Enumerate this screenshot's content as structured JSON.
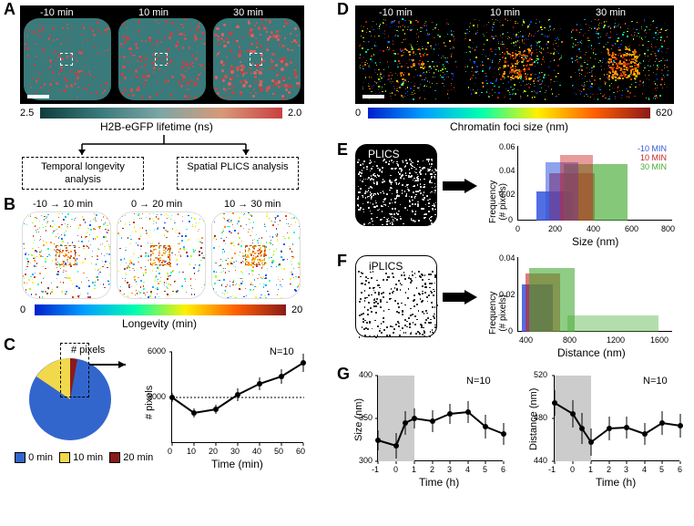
{
  "labels": {
    "A": "A",
    "B": "B",
    "C": "C",
    "D": "D",
    "E": "E",
    "F": "F",
    "G": "G"
  },
  "panelA": {
    "times": [
      "-10 min",
      "10 min",
      "30 min"
    ],
    "colorbar_label": "H2B-eGFP lifetime (ns)",
    "colorbar_min": "2.5",
    "colorbar_max": "2.0",
    "bg_color": "#000000",
    "cell_color": "#3a7a7a",
    "speckle_colors": [
      "#c94040",
      "#d04545",
      "#e05050"
    ],
    "box1": "Temporal longevity analysis",
    "box2": "Spatial PLICS analysis"
  },
  "panelB": {
    "times": [
      "-10 → 10 min",
      "0 → 20 min",
      "10 → 30 min"
    ],
    "colorbar_label": "Longevity (min)",
    "colorbar_min": "0",
    "colorbar_max": "20"
  },
  "panelC": {
    "pie_label": "# pixels",
    "legend": [
      "0 min",
      "10 min",
      "20 min"
    ],
    "legend_colors": [
      "#3366cc",
      "#f2d94c",
      "#8b1a1a"
    ],
    "n_label": "N=10",
    "xlabel": "Time (min)",
    "ylabel": "# pixels",
    "xticks": [
      "0",
      "10",
      "20",
      "30",
      "40",
      "50",
      "60"
    ],
    "yticks": [
      "3000",
      "6000"
    ],
    "dash_y": "3000",
    "data_x": [
      0,
      10,
      20,
      30,
      40,
      50,
      60
    ],
    "data_y": [
      3000,
      2000,
      2200,
      3200,
      3900,
      4400,
      5300
    ],
    "err": [
      300,
      300,
      300,
      400,
      400,
      500,
      600
    ]
  },
  "panelD": {
    "times": [
      "-10 min",
      "10 min",
      "30 min"
    ],
    "colorbar_label": "Chromatin foci size (nm)",
    "colorbar_min": "0",
    "colorbar_max": "620"
  },
  "panelE": {
    "title": "PLICS",
    "xlabel": "Size (nm)",
    "ylabel": "Frequency\n(# pixels)",
    "legend": [
      "-10 MIN",
      "10 MIN",
      "30 MIN"
    ],
    "legend_colors": [
      "#3355dd",
      "#cc2222",
      "#44aa33"
    ],
    "xticks": [
      "0",
      "200",
      "400",
      "600",
      "800"
    ],
    "yticks": [
      "0",
      "0.02",
      "0.04",
      "0.06"
    ]
  },
  "panelF": {
    "title": "iPLICS",
    "xlabel": "Distance (nm)",
    "ylabel": "Frequency\n(# pixels)",
    "xticks": [
      "400",
      "800",
      "1200",
      "1600"
    ],
    "yticks": [
      "0",
      "0.02",
      "0.04"
    ]
  },
  "panelG": {
    "n_label": "N=10",
    "xlabel": "Time (h)",
    "ylabel1": "Size (nm)",
    "ylabel2": "Distance (nm)",
    "xticks": [
      "-1",
      "0",
      "1",
      "2",
      "3",
      "4",
      "5",
      "6"
    ],
    "yticks1": [
      "300",
      "350",
      "400"
    ],
    "yticks2": [
      "440",
      "480",
      "520"
    ],
    "shade_color": "#cccccc",
    "data_x": [
      -1,
      0,
      0.5,
      1,
      2,
      3,
      4,
      5,
      6
    ],
    "size_y": [
      325,
      318,
      345,
      350,
      347,
      355,
      358,
      340,
      332
    ],
    "dist_y": [
      508,
      495,
      478,
      462,
      478,
      479,
      472,
      485,
      482
    ],
    "err1": [
      12,
      15,
      14,
      12,
      13,
      12,
      13,
      14,
      13
    ],
    "err2": [
      15,
      16,
      18,
      16,
      14,
      13,
      13,
      14,
      14
    ]
  }
}
